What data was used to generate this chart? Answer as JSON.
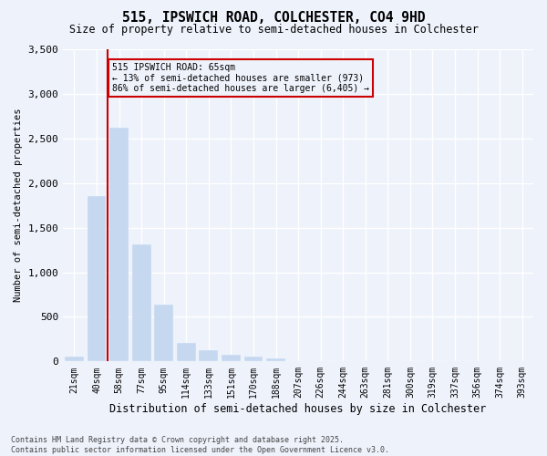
{
  "title_line1": "515, IPSWICH ROAD, COLCHESTER, CO4 9HD",
  "title_line2": "Size of property relative to semi-detached houses in Colchester",
  "xlabel": "Distribution of semi-detached houses by size in Colchester",
  "ylabel": "Number of semi-detached properties",
  "property_label": "515 IPSWICH ROAD: 65sqm",
  "pct_smaller": 13,
  "pct_larger": 86,
  "count_smaller": 973,
  "count_larger": 6405,
  "bar_color": "#c5d8f0",
  "vline_color": "#cc0000",
  "annotation_box_edge_color": "#cc0000",
  "background_color": "#eef2fb",
  "grid_color": "#ffffff",
  "categories": [
    "21sqm",
    "40sqm",
    "58sqm",
    "77sqm",
    "95sqm",
    "114sqm",
    "133sqm",
    "151sqm",
    "170sqm",
    "188sqm",
    "207sqm",
    "226sqm",
    "244sqm",
    "263sqm",
    "281sqm",
    "300sqm",
    "319sqm",
    "337sqm",
    "356sqm",
    "374sqm",
    "393sqm"
  ],
  "values": [
    50,
    1850,
    2620,
    1310,
    640,
    210,
    130,
    80,
    55,
    30,
    5,
    3,
    0,
    0,
    0,
    0,
    0,
    0,
    0,
    0,
    0
  ],
  "n_bins": 21,
  "ylim": [
    0,
    3500
  ],
  "yticks": [
    0,
    500,
    1000,
    1500,
    2000,
    2500,
    3000,
    3500
  ],
  "prop_bin_index": 2,
  "footnote": "Contains HM Land Registry data © Crown copyright and database right 2025.\nContains public sector information licensed under the Open Government Licence v3.0."
}
